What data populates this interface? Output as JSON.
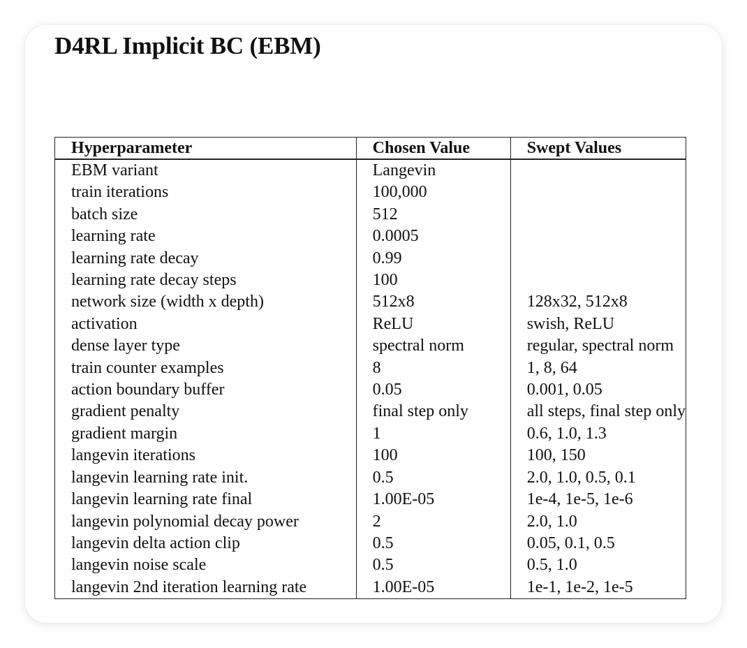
{
  "title": "D4RL Implicit BC (EBM)",
  "table": {
    "headers": {
      "param": "Hyperparameter",
      "chosen": "Chosen Value",
      "swept": "Swept Values"
    },
    "rows": [
      {
        "param": "EBM variant",
        "chosen": "Langevin",
        "swept": ""
      },
      {
        "param": "train iterations",
        "chosen": "100,000",
        "swept": ""
      },
      {
        "param": "batch size",
        "chosen": "512",
        "swept": ""
      },
      {
        "param": "learning rate",
        "chosen": "0.0005",
        "swept": ""
      },
      {
        "param": "learning rate decay",
        "chosen": "0.99",
        "swept": ""
      },
      {
        "param": "learning rate decay steps",
        "chosen": "100",
        "swept": ""
      },
      {
        "param": "network size (width x depth)",
        "chosen": "512x8",
        "swept": "128x32, 512x8"
      },
      {
        "param": "activation",
        "chosen": "ReLU",
        "swept": "swish, ReLU"
      },
      {
        "param": "dense layer type",
        "chosen": "spectral norm",
        "swept": "regular, spectral norm"
      },
      {
        "param": "train counter examples",
        "chosen": "8",
        "swept": "1, 8, 64"
      },
      {
        "param": "action boundary buffer",
        "chosen": "0.05",
        "swept": "0.001, 0.05"
      },
      {
        "param": "gradient penalty",
        "chosen": "final step only",
        "swept": "all steps, final step only"
      },
      {
        "param": "gradient margin",
        "chosen": "1",
        "swept": "0.6, 1.0, 1.3"
      },
      {
        "param": "langevin iterations",
        "chosen": "100",
        "swept": "100, 150"
      },
      {
        "param": "langevin learning rate init.",
        "chosen": "0.5",
        "swept": "2.0, 1.0, 0.5, 0.1"
      },
      {
        "param": "langevin learning rate final",
        "chosen": "1.00E-05",
        "swept": "1e-4, 1e-5, 1e-6"
      },
      {
        "param": "langevin polynomial decay power",
        "chosen": "2",
        "swept": "2.0, 1.0"
      },
      {
        "param": "langevin delta action clip",
        "chosen": "0.5",
        "swept": "0.05, 0.1, 0.5"
      },
      {
        "param": "langevin noise scale",
        "chosen": "0.5",
        "swept": "0.5, 1.0"
      },
      {
        "param": "langevin 2nd iteration learning rate",
        "chosen": "1.00E-05",
        "swept": "1e-1, 1e-2, 1e-5"
      }
    ]
  }
}
